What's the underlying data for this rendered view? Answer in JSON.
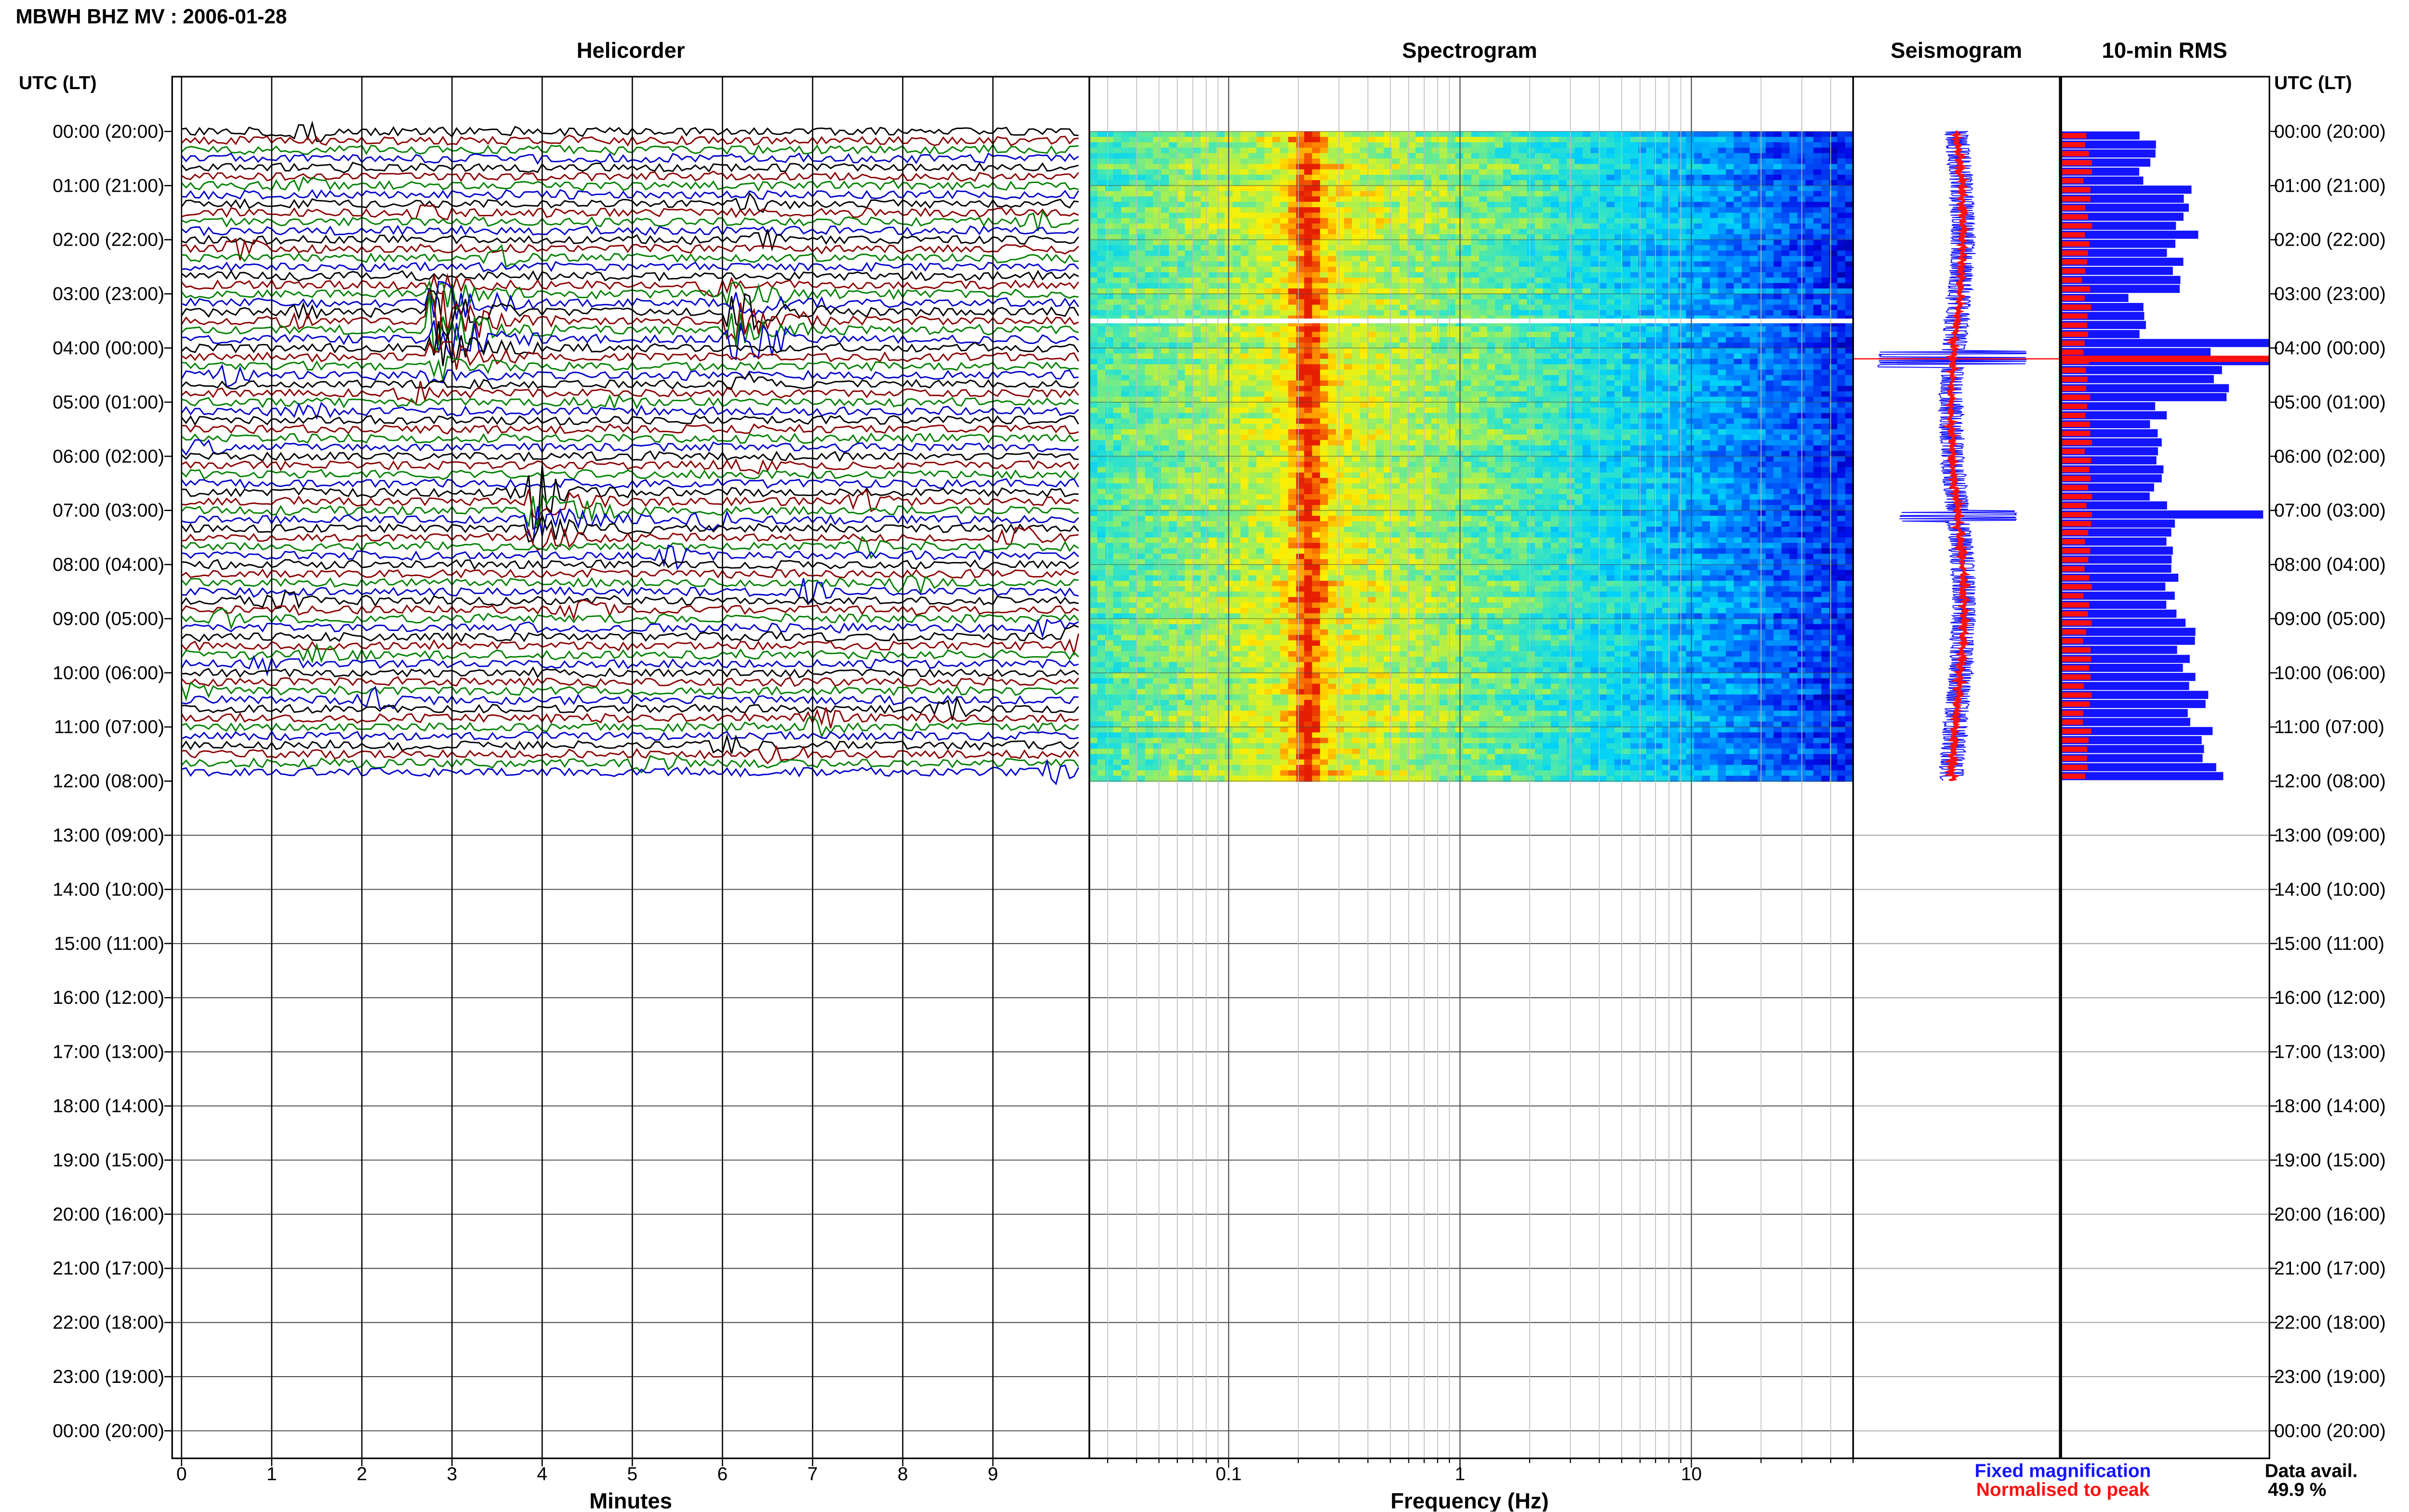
{
  "chart_data": {
    "type": "other",
    "title": "MBWH BHZ MV : 2006-01-28",
    "hour_axis_label": "UTC (LT)",
    "hour_labels": [
      "00:00 (20:00)",
      "01:00 (21:00)",
      "02:00 (22:00)",
      "03:00 (23:00)",
      "04:00 (00:00)",
      "05:00 (01:00)",
      "06:00 (02:00)",
      "07:00 (03:00)",
      "08:00 (04:00)",
      "09:00 (05:00)",
      "10:00 (06:00)",
      "11:00 (07:00)",
      "12:00 (08:00)",
      "13:00 (09:00)",
      "14:00 (10:00)",
      "15:00 (11:00)",
      "16:00 (12:00)",
      "17:00 (13:00)",
      "18:00 (14:00)",
      "19:00 (15:00)",
      "20:00 (16:00)",
      "21:00 (17:00)",
      "22:00 (18:00)",
      "23:00 (19:00)",
      "00:00 (20:00)"
    ],
    "data_hours": 12,
    "panels": {
      "helicorder": {
        "title": "Helicorder",
        "xlabel": "Minutes",
        "ticks": [
          "0",
          "1",
          "2",
          "3",
          "4",
          "5",
          "6",
          "7",
          "8",
          "9"
        ],
        "xlim": [
          0,
          10
        ],
        "trace_colors": [
          "#000000",
          "#8b0000",
          "#008000",
          "#0000cd"
        ],
        "events": [
          {
            "minute": 2.9,
            "hour": 3.6,
            "color": "#8b0000",
            "size": "large"
          },
          {
            "minute": 6.2,
            "hour": 3.4,
            "color": "#8b0000",
            "size": "medium"
          },
          {
            "minute": 4.0,
            "hour": 7.1,
            "color": "#008000",
            "size": "medium"
          }
        ]
      },
      "spectrogram": {
        "title": "Spectrogram",
        "xlabel": "Frequency (Hz)",
        "ticks": [
          "0.1",
          "1",
          "10"
        ],
        "xscale": "log",
        "xlim": [
          0.025,
          50
        ],
        "peak_frequency_hz": 0.22,
        "gap_hour": 3.5
      },
      "seismogram": {
        "title": "Seismogram"
      },
      "rms": {
        "title": "10-min RMS",
        "fixed_hourly": [
          0.42,
          0.6,
          0.55,
          0.38,
          0.75,
          0.45,
          0.48,
          0.52,
          0.55,
          0.6,
          0.65,
          0.72,
          0.8
        ],
        "peak_hour": 4.2
      }
    },
    "legend": {
      "fixed_label": "Fixed magnification",
      "fixed_color": "#1414ff",
      "normalised_label": "Normalised to peak",
      "normalised_color": "#ff1010"
    },
    "availability": {
      "label": "Data avail.",
      "value": "49.9 %"
    }
  }
}
